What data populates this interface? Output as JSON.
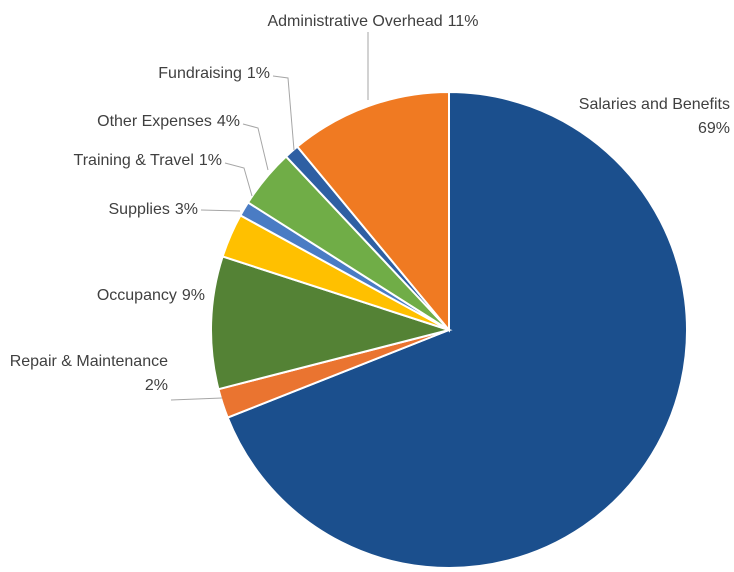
{
  "chart_data": {
    "type": "pie",
    "categories": [
      "Salaries and Benefits",
      "Repair & Maintenance",
      "Occupancy",
      "Supplies",
      "Training & Travel",
      "Other Expenses",
      "Fundraising",
      "Administrative Overhead"
    ],
    "values": [
      69,
      2,
      9,
      3,
      1,
      4,
      1,
      11
    ],
    "value_labels": [
      "69%",
      "2%",
      "9%",
      "3%",
      "1%",
      "4%",
      "1%",
      "11%"
    ],
    "colors": [
      "#1b4f8d",
      "#ea7430",
      "#548235",
      "#ffc000",
      "#4a7cc4",
      "#70ad47",
      "#2e5fa3",
      "#f07a22"
    ]
  }
}
